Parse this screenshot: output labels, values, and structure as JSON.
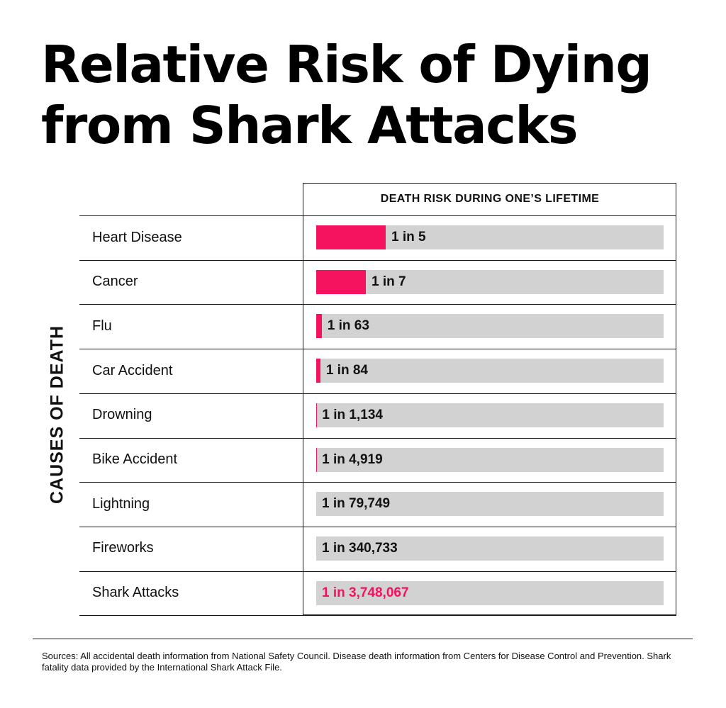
{
  "title_lines": [
    "Relative Risk of Dying",
    "from Shark Attacks"
  ],
  "y_axis_label": "CAUSES OF DEATH",
  "column_header": "DEATH RISK DURING ONE’S LIFETIME",
  "sources": "Sources: All accidental death information from National Safety Council. Disease death information from Centers for Disease Control and Prevention. Shark fatality data provided by the International Shark Attack File.",
  "colors": {
    "accent": "#f5125f",
    "track": "#d2d2d2",
    "text": "#111111"
  },
  "chart_data": {
    "type": "bar",
    "orientation": "horizontal",
    "title": "Relative Risk of Dying from Shark Attacks",
    "xlabel": "DEATH RISK DURING ONE’S LIFETIME",
    "ylabel": "CAUSES OF DEATH",
    "categories": [
      "Heart Disease",
      "Cancer",
      "Flu",
      "Car Accident",
      "Drowning",
      "Bike Accident",
      "Lightning",
      "Fireworks",
      "Shark Attacks"
    ],
    "labels": [
      "1 in 5",
      "1 in 7",
      "1 in 63",
      "1 in 84",
      "1 in 1,134",
      "1 in 4,919",
      "1 in 79,749",
      "1 in 340,733",
      "1 in 3,748,067"
    ],
    "values": [
      0.2,
      0.142857,
      0.015873,
      0.011905,
      0.000882,
      0.000203,
      1.25e-05,
      2.9e-06,
      2.7e-07
    ],
    "xlim": [
      0,
      1
    ],
    "highlight": "Shark Attacks",
    "grid": false,
    "legend": "none"
  }
}
